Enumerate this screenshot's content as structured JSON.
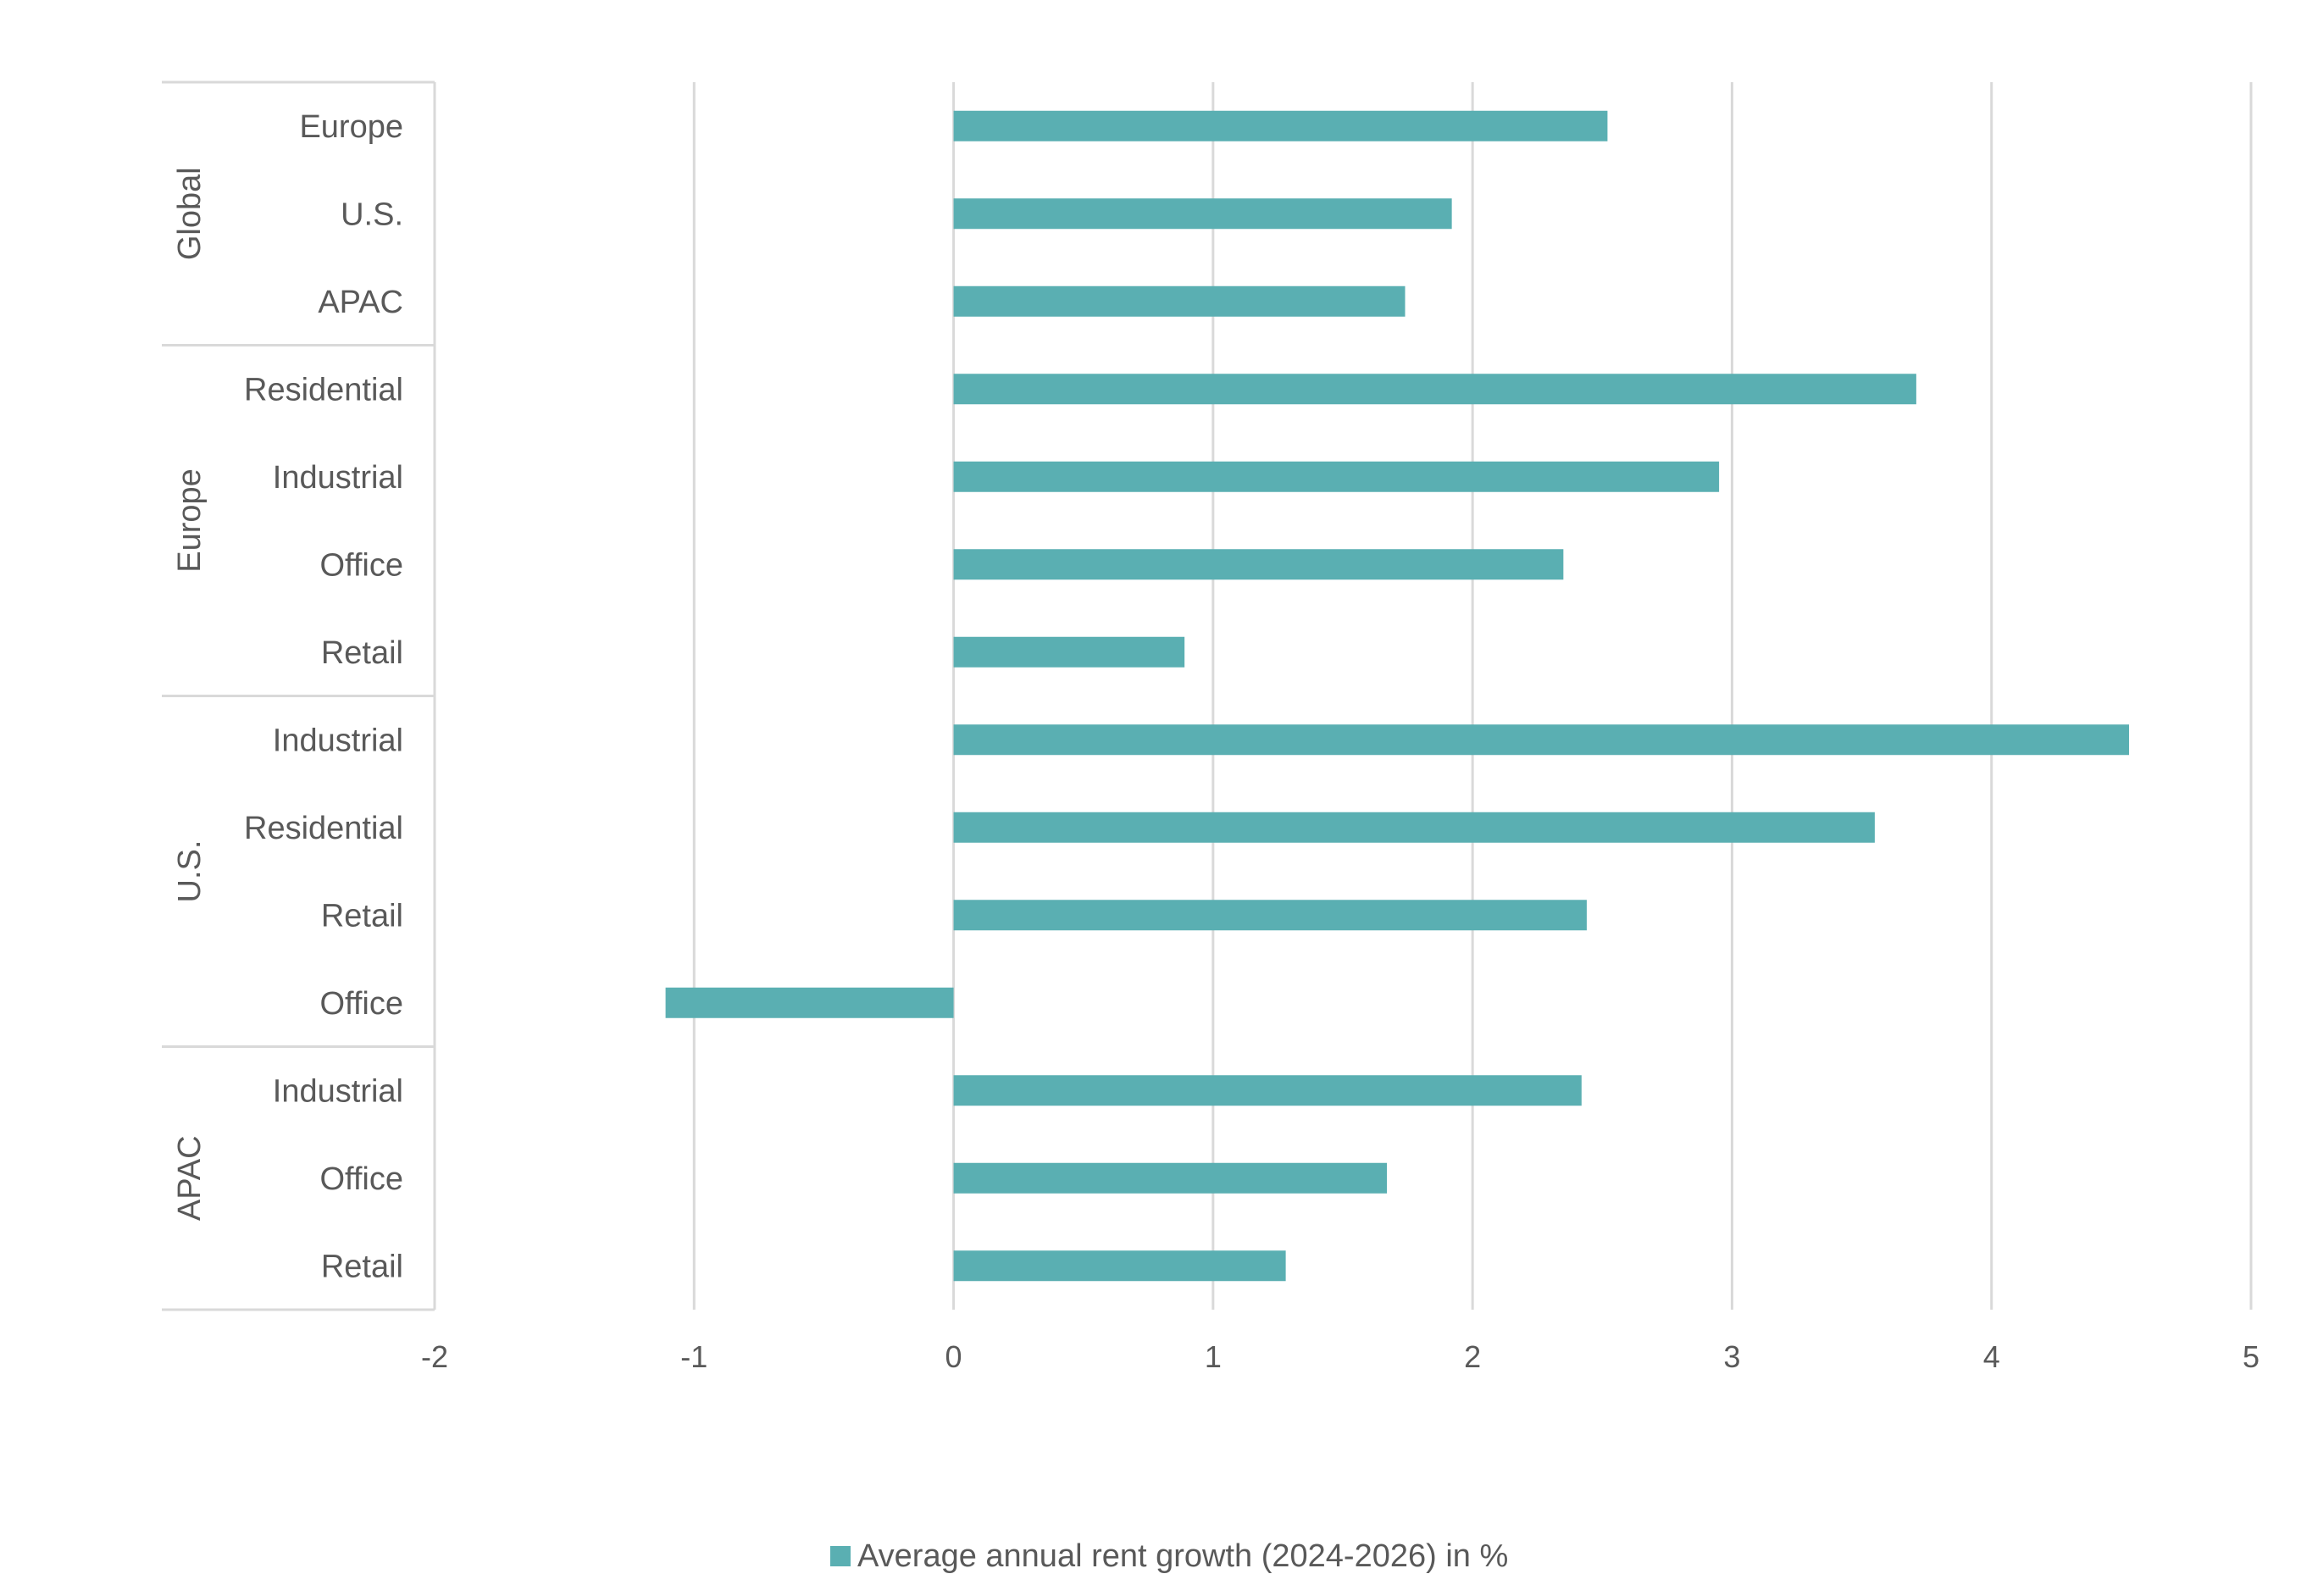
{
  "chart_data": {
    "type": "bar",
    "orientation": "horizontal",
    "groups": [
      {
        "name": "Global",
        "categories": [
          "Europe",
          "U.S.",
          "APAC"
        ]
      },
      {
        "name": "Europe",
        "categories": [
          "Residential",
          "Industrial",
          "Office",
          "Retail"
        ]
      },
      {
        "name": "U.S.",
        "categories": [
          "Industrial",
          "Residential",
          "Retail",
          "Office"
        ]
      },
      {
        "name": "APAC",
        "categories": [
          "Industrial",
          "Office",
          "Retail"
        ]
      }
    ],
    "series": [
      {
        "name": "Average annual rent growth (2024-2026) in %",
        "color": "#5aafb2",
        "values": [
          2.52,
          1.92,
          1.74,
          3.71,
          2.95,
          2.35,
          0.89,
          4.53,
          3.55,
          2.44,
          -1.11,
          2.42,
          1.67,
          1.28
        ]
      }
    ],
    "xlim": [
      -2,
      5
    ],
    "xticks": [
      "-2",
      "-1",
      "0",
      "1",
      "2",
      "3",
      "4",
      "5"
    ],
    "grid": true,
    "legend_position": "bottom",
    "title": "",
    "xlabel": "",
    "ylabel": ""
  }
}
